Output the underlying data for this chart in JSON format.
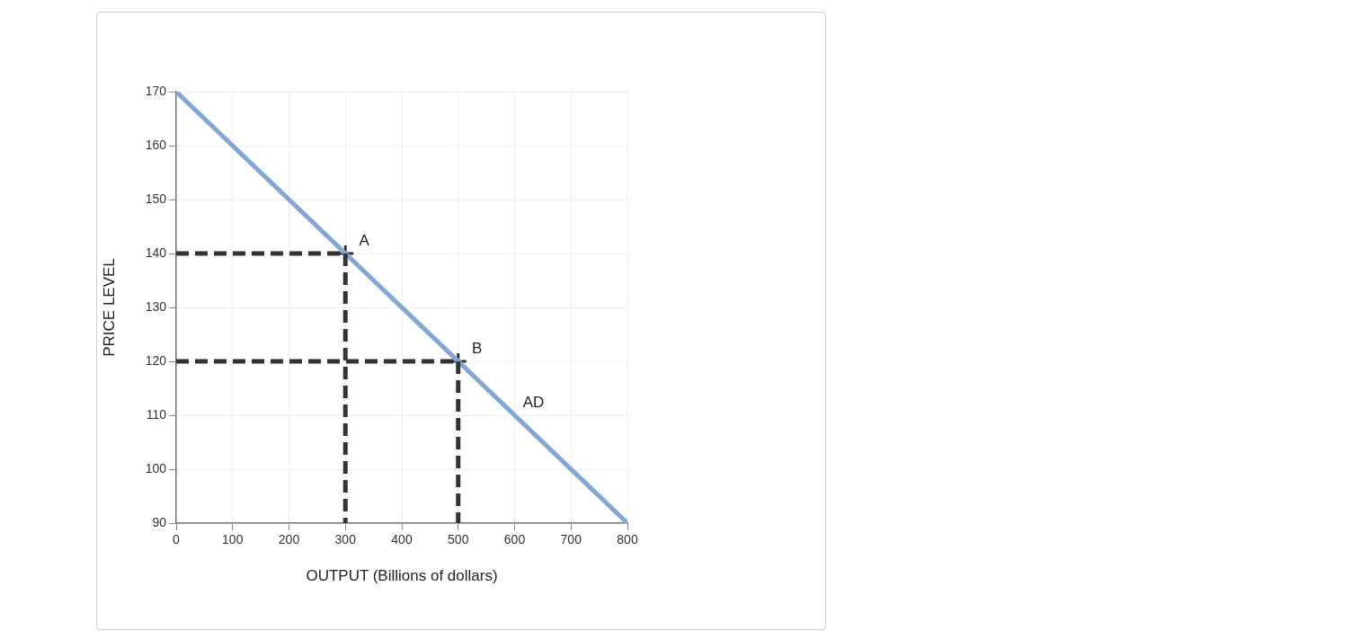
{
  "chart_data": {
    "type": "line",
    "xlabel": "OUTPUT (Billions of dollars)",
    "ylabel": "PRICE LEVEL",
    "xlim": [
      0,
      800
    ],
    "ylim": [
      90,
      170
    ],
    "xticks": [
      0,
      100,
      200,
      300,
      400,
      500,
      600,
      700,
      800
    ],
    "yticks": [
      90,
      100,
      110,
      120,
      130,
      140,
      150,
      160,
      170
    ],
    "grid": true,
    "series": [
      {
        "type": "line",
        "x": [
          0,
          300
        ],
        "values": [
          140,
          140
        ],
        "color": "#333333",
        "line_style": "dashed",
        "marker": "none"
      },
      {
        "type": "line",
        "x": [
          300,
          300
        ],
        "values": [
          140,
          90
        ],
        "color": "#333333",
        "line_style": "dashed",
        "marker": "none"
      },
      {
        "type": "line",
        "x": [
          0,
          500
        ],
        "values": [
          120,
          120
        ],
        "color": "#333333",
        "line_style": "dashed",
        "marker": "none"
      },
      {
        "type": "line",
        "x": [
          500,
          500
        ],
        "values": [
          120,
          90
        ],
        "color": "#333333",
        "line_style": "dashed",
        "marker": "none"
      },
      {
        "type": "line",
        "x": [
          0,
          800
        ],
        "values": [
          170,
          90
        ],
        "color": "#81a7d4",
        "line_style": "solid",
        "marker": "none"
      },
      {
        "type": "scatter",
        "x": [
          300,
          500
        ],
        "values": [
          140,
          120
        ],
        "color": "#333333",
        "marker": "cross"
      }
    ],
    "annotations": [
      {
        "text": "A",
        "x": 300,
        "y": 140
      },
      {
        "text": "B",
        "x": 500,
        "y": 120
      },
      {
        "text": "AD",
        "x": 600,
        "y": 110
      }
    ]
  }
}
